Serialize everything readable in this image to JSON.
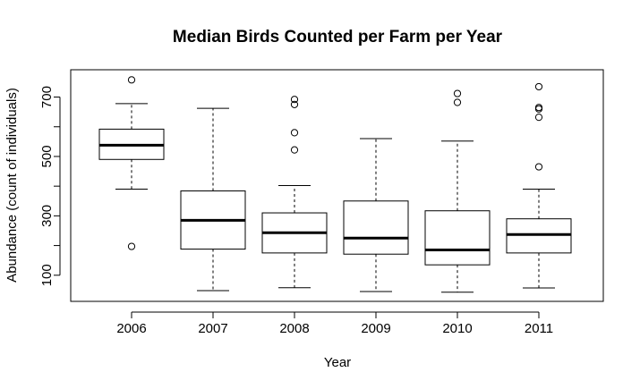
{
  "chart_data": {
    "type": "boxplot",
    "title": "Median Birds Counted per Farm per Year",
    "xlabel": "Year",
    "ylabel": "Abundance (count of individuals)",
    "ylim": [
      12,
      792
    ],
    "y_ticks": [
      100,
      200,
      300,
      400,
      500,
      600,
      700
    ],
    "y_tick_labels": [
      "100",
      "300",
      "500",
      "700"
    ],
    "grid": false,
    "categories": [
      "2006",
      "2007",
      "2008",
      "2009",
      "2010",
      "2011"
    ],
    "boxes": [
      {
        "category": "2006",
        "whisker_low": 390,
        "q1": 490,
        "median": 538,
        "q3": 592,
        "whisker_high": 678,
        "outliers": [
          758,
          197
        ]
      },
      {
        "category": "2007",
        "whisker_low": 48,
        "q1": 188,
        "median": 285,
        "q3": 384,
        "whisker_high": 662,
        "outliers": []
      },
      {
        "category": "2008",
        "whisker_low": 58,
        "q1": 175,
        "median": 243,
        "q3": 310,
        "whisker_high": 402,
        "outliers": [
          692,
          675,
          580,
          522
        ]
      },
      {
        "category": "2009",
        "whisker_low": 45,
        "q1": 171,
        "median": 225,
        "q3": 350,
        "whisker_high": 560,
        "outliers": []
      },
      {
        "category": "2010",
        "whisker_low": 43,
        "q1": 135,
        "median": 185,
        "q3": 317,
        "whisker_high": 552,
        "outliers": [
          712,
          682
        ]
      },
      {
        "category": "2011",
        "whisker_low": 57,
        "q1": 175,
        "median": 237,
        "q3": 290,
        "whisker_high": 390,
        "outliers": [
          735,
          665,
          660,
          632,
          465
        ]
      }
    ]
  }
}
